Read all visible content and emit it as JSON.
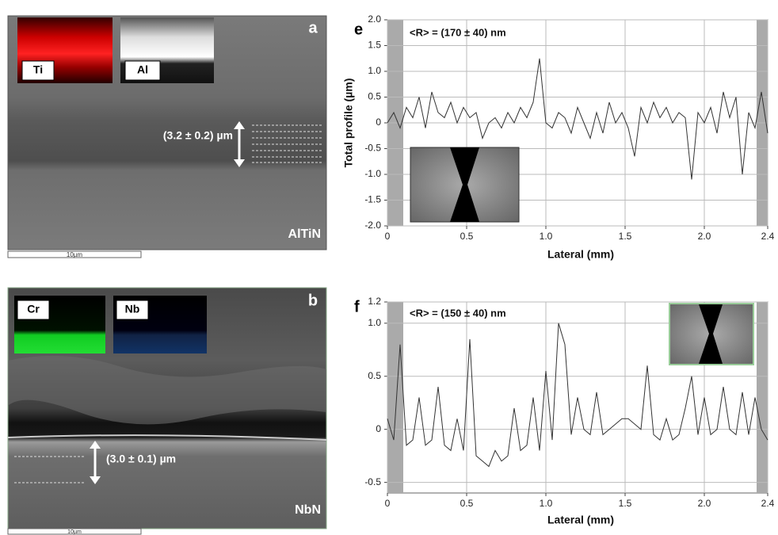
{
  "chart_data": [
    {
      "type": "line",
      "panel": "e",
      "annotation": "<R> = (170 ± 40) nm",
      "y_label": "Total profile (µm)",
      "x_label": "Lateral (mm)",
      "xlim": [
        0,
        2.4
      ],
      "ylim": [
        -2,
        2
      ],
      "xticks": [
        0,
        0.5,
        {
          "value": 1,
          "label": "1.0"
        },
        1.5,
        {
          "value": 2,
          "label": "2.0"
        },
        2.4
      ],
      "yticks": [
        {
          "value": -2,
          "label": "-2.0"
        },
        -1.5,
        {
          "value": -1,
          "label": "-1.0"
        },
        -0.5,
        0,
        0.5,
        {
          "value": 1,
          "label": "1.0"
        },
        1.5,
        {
          "value": 2,
          "label": "2.0"
        }
      ],
      "grid": true,
      "shaded_x": [
        [
          0,
          0.1
        ],
        [
          2.33,
          2.4
        ]
      ],
      "series": [
        {
          "color": "#333333",
          "x": [
            0,
            0.04,
            0.08,
            0.12,
            0.16,
            0.2,
            0.24,
            0.28,
            0.32,
            0.36,
            0.4,
            0.44,
            0.48,
            0.52,
            0.56,
            0.6,
            0.64,
            0.68,
            0.72,
            0.76,
            0.8,
            0.84,
            0.88,
            0.92,
            0.96,
            1.0,
            1.04,
            1.08,
            1.12,
            1.16,
            1.2,
            1.24,
            1.28,
            1.32,
            1.36,
            1.4,
            1.44,
            1.48,
            1.52,
            1.56,
            1.6,
            1.64,
            1.68,
            1.72,
            1.76,
            1.8,
            1.84,
            1.88,
            1.92,
            1.96,
            2.0,
            2.04,
            2.08,
            2.12,
            2.16,
            2.2,
            2.24,
            2.28,
            2.32,
            2.36,
            2.4
          ],
          "values": [
            0.0,
            0.2,
            -0.1,
            0.3,
            0.1,
            0.5,
            -0.1,
            0.6,
            0.2,
            0.1,
            0.4,
            0.0,
            0.3,
            0.1,
            0.2,
            -0.3,
            0.0,
            0.1,
            -0.1,
            0.2,
            0.0,
            0.3,
            0.1,
            0.4,
            1.25,
            0.0,
            -0.1,
            0.2,
            0.1,
            -0.2,
            0.3,
            0.0,
            -0.3,
            0.2,
            -0.2,
            0.4,
            0.0,
            0.2,
            -0.1,
            -0.65,
            0.3,
            0.0,
            0.4,
            0.1,
            0.3,
            0.0,
            0.2,
            0.1,
            -1.1,
            0.2,
            0.0,
            0.3,
            -0.2,
            0.6,
            0.1,
            0.5,
            -1.0,
            0.2,
            -0.1,
            0.6,
            -0.2
          ]
        }
      ]
    },
    {
      "type": "line",
      "panel": "f",
      "annotation": "<R> = (150 ± 40) nm",
      "x_label": "Lateral (mm)",
      "xlim": [
        0,
        2.4
      ],
      "ylim": [
        -0.6,
        1.2
      ],
      "xticks": [
        0,
        0.5,
        {
          "value": 1,
          "label": "1.0"
        },
        1.5,
        {
          "value": 2,
          "label": "2.0"
        },
        2.4
      ],
      "yticks": [
        -0.5,
        0,
        0.5,
        {
          "value": 1,
          "label": "1.0"
        },
        1.2
      ],
      "grid": true,
      "shaded_x": [
        [
          0,
          0.1
        ],
        [
          2.33,
          2.4
        ]
      ],
      "series": [
        {
          "color": "#333333",
          "x": [
            0,
            0.04,
            0.08,
            0.12,
            0.16,
            0.2,
            0.24,
            0.28,
            0.32,
            0.36,
            0.4,
            0.44,
            0.48,
            0.52,
            0.56,
            0.6,
            0.64,
            0.68,
            0.72,
            0.76,
            0.8,
            0.84,
            0.88,
            0.92,
            0.96,
            1.0,
            1.04,
            1.08,
            1.12,
            1.16,
            1.2,
            1.24,
            1.28,
            1.32,
            1.36,
            1.4,
            1.44,
            1.48,
            1.52,
            1.56,
            1.6,
            1.64,
            1.68,
            1.72,
            1.76,
            1.8,
            1.84,
            1.88,
            1.92,
            1.96,
            2.0,
            2.04,
            2.08,
            2.12,
            2.16,
            2.2,
            2.24,
            2.28,
            2.32,
            2.36,
            2.4
          ],
          "values": [
            0.1,
            -0.1,
            0.8,
            -0.15,
            -0.1,
            0.3,
            -0.15,
            -0.1,
            0.4,
            -0.15,
            -0.2,
            0.1,
            -0.2,
            0.85,
            -0.25,
            -0.3,
            -0.35,
            -0.2,
            -0.3,
            -0.25,
            0.2,
            -0.2,
            -0.15,
            0.3,
            -0.2,
            0.55,
            -0.1,
            1.0,
            0.8,
            -0.05,
            0.3,
            0.0,
            -0.05,
            0.35,
            -0.05,
            0.0,
            0.05,
            0.1,
            0.1,
            0.05,
            0.0,
            0.6,
            -0.05,
            -0.1,
            0.1,
            -0.1,
            -0.05,
            0.2,
            0.5,
            -0.05,
            0.3,
            -0.05,
            0.0,
            0.4,
            0.0,
            -0.05,
            0.35,
            -0.05,
            0.3,
            0.0,
            -0.1
          ]
        }
      ]
    }
  ],
  "images": [
    {
      "panel": "a",
      "material": "AlTiN",
      "insets": [
        "Ti",
        "Al"
      ],
      "thickness": "(3.2 ± 0.2) µm",
      "scale_bar": "10µm"
    },
    {
      "panel": "b",
      "material": "NbN",
      "insets": [
        "Cr",
        "Nb"
      ],
      "thickness": "(3.0 ± 0.1) µm",
      "scale_bar": "10µm"
    }
  ]
}
